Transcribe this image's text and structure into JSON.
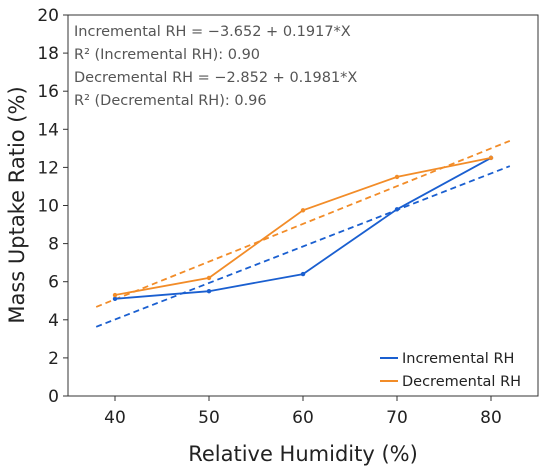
{
  "chart_data": {
    "type": "line",
    "xlabel": "Relative Humidity (%)",
    "ylabel": "Mass Uptake Ratio (%)",
    "xlim": [
      35,
      85
    ],
    "ylim": [
      0,
      20
    ],
    "xticks": [
      40,
      50,
      60,
      70,
      80
    ],
    "yticks": [
      0,
      2,
      4,
      6,
      8,
      10,
      12,
      14,
      16,
      18,
      20
    ],
    "grid": false,
    "legend_position": "bottom-right",
    "series": [
      {
        "name": "Incremental RH",
        "color": "#1a5fd0",
        "style": "solid-with-markers",
        "x": [
          40,
          50,
          60,
          70,
          80
        ],
        "y": [
          5.1,
          5.5,
          6.4,
          9.8,
          12.5
        ]
      },
      {
        "name": "Decremental RH",
        "color": "#f28c28",
        "style": "solid-with-markers",
        "x": [
          40,
          50,
          60,
          70,
          80
        ],
        "y": [
          5.3,
          6.2,
          9.75,
          11.5,
          12.5
        ]
      }
    ],
    "fits": [
      {
        "series": "Incremental RH",
        "color": "#1a5fd0",
        "style": "dashed",
        "intercept": -3.652,
        "slope": 0.1917,
        "x_range": [
          38,
          82
        ]
      },
      {
        "series": "Decremental RH",
        "color": "#f28c28",
        "style": "dashed",
        "intercept": -2.852,
        "slope": 0.1981,
        "x_range": [
          38,
          82
        ]
      }
    ],
    "annotations": [
      "Incremental RH = −3.652 + 0.1917*X",
      "R² (Incremental RH): 0.90",
      "Decremental RH = −2.852 + 0.1981*X",
      "R² (Decremental RH): 0.96"
    ]
  }
}
